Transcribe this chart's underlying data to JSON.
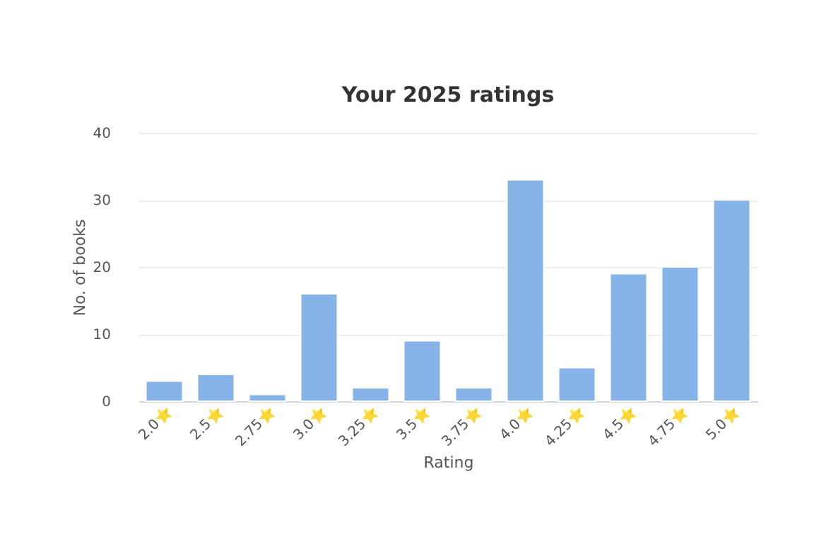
{
  "chart_data": {
    "type": "bar",
    "title": "Your 2025 ratings",
    "xlabel": "Rating",
    "ylabel": "No. of books",
    "categories": [
      "2.0⭐",
      "2.5⭐",
      "2.75⭐",
      "3.0⭐",
      "3.25⭐",
      "3.5⭐",
      "3.75⭐",
      "4.0⭐",
      "4.25⭐",
      "4.5⭐",
      "4.75⭐",
      "5.0⭐"
    ],
    "values": [
      3,
      4,
      1,
      16,
      2,
      9,
      2,
      33,
      5,
      19,
      20,
      30
    ],
    "color": "#86b3e8",
    "ylim": [
      0,
      40
    ],
    "yticks": [
      0,
      10,
      20,
      30,
      40
    ],
    "grid": "y"
  }
}
